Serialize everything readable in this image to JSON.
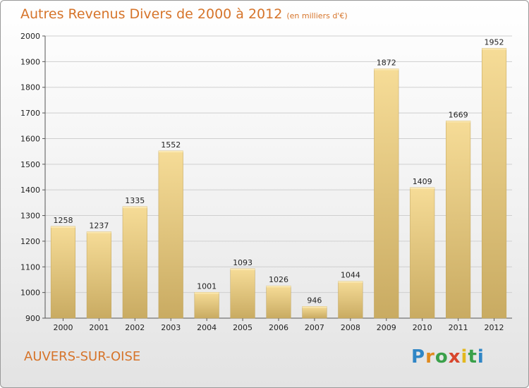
{
  "header": {
    "title": "Autres Revenus Divers de 2000 à 2012",
    "subtitle": "(en milliers d'€)"
  },
  "footer": {
    "city": "AUVERS-SUR-OISE",
    "logo_letters": [
      "P",
      "r",
      "o",
      "x",
      "i",
      "t",
      "i"
    ],
    "logo_colors": [
      "#2f86c6",
      "#e08a1e",
      "#3aa04a",
      "#d8462d",
      "#e3b81f",
      "#3aa04a",
      "#2f86c6"
    ]
  },
  "colors": {
    "bar_light": "#f6dc97",
    "bar_dark": "#c9ab62",
    "accent": "#d6742a"
  },
  "chart_data": {
    "type": "bar",
    "categories": [
      "2000",
      "2001",
      "2002",
      "2003",
      "2004",
      "2005",
      "2006",
      "2007",
      "2008",
      "2009",
      "2010",
      "2011",
      "2012"
    ],
    "values": [
      1258,
      1237,
      1335,
      1552,
      1001,
      1093,
      1026,
      946,
      1044,
      1872,
      1409,
      1669,
      1952
    ],
    "ylim": [
      900,
      2000
    ],
    "yticks": [
      900,
      1000,
      1100,
      1200,
      1300,
      1400,
      1500,
      1600,
      1700,
      1800,
      1900,
      2000
    ],
    "grid": true,
    "xlabel": "",
    "ylabel": ""
  }
}
